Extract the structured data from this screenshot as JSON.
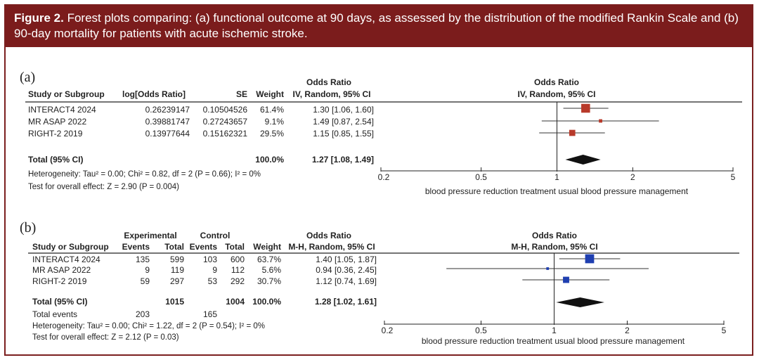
{
  "caption": {
    "figure_label": "Figure 2.",
    "text": " Forest plots comparing: (a) functional outcome at 90 days, as assessed by the distribution of the modified Rankin Scale and (b) 90-day mortality for patients with acute ischemic stroke."
  },
  "panel_a": {
    "label": "(a)",
    "headers": {
      "study": "Study or Subgroup",
      "log_or": "log[Odds Ratio]",
      "se": "SE",
      "weight": "Weight",
      "or_top": "Odds Ratio",
      "or_method": "IV, Random, 95% CI",
      "plot_top": "Odds Ratio",
      "plot_method": "IV, Random, 95% CI"
    },
    "rows": [
      {
        "study": "INTERACT4 2024",
        "log_or": "0.26239147",
        "se": "0.10504526",
        "weight": "61.4%",
        "ci_text": "1.30 [1.06, 1.60]"
      },
      {
        "study": "MR ASAP 2022",
        "log_or": "0.39881747",
        "se": "0.27243657",
        "weight": "9.1%",
        "ci_text": "1.49 [0.87, 2.54]"
      },
      {
        "study": "RIGHT-2 2019",
        "log_or": "0.13977644",
        "se": "0.15162321",
        "weight": "29.5%",
        "ci_text": "1.15 [0.85, 1.55]"
      }
    ],
    "total": {
      "label": "Total (95% CI)",
      "weight": "100.0%",
      "ci_text": "1.27 [1.08, 1.49]"
    },
    "heterogeneity": "Heterogeneity: Tau² = 0.00; Chi² = 0.82, df = 2 (P = 0.66); I² = 0%",
    "overall_effect": "Test for overall effect: Z = 2.90 (P = 0.004)",
    "axis_ticks": [
      "0.2",
      "0.5",
      "1",
      "2",
      "5"
    ],
    "axis_caption": "blood pressure reduction treatment  usual blood pressure management",
    "marker_color": "#b83a2a"
  },
  "panel_b": {
    "label": "(b)",
    "headers": {
      "experimental": "Experimental",
      "control": "Control",
      "study": "Study or Subgroup",
      "events_e": "Events",
      "total_e": "Total",
      "events_c": "Events",
      "total_c": "Total",
      "weight": "Weight",
      "or_top": "Odds Ratio",
      "or_method": "M-H, Random, 95% CI",
      "plot_top": "Odds Ratio",
      "plot_method": "M-H, Random, 95% CI"
    },
    "rows": [
      {
        "study": "INTERACT4 2024",
        "events_e": "135",
        "total_e": "599",
        "events_c": "103",
        "total_c": "600",
        "weight": "63.7%",
        "ci_text": "1.40 [1.05, 1.87]"
      },
      {
        "study": "MR ASAP 2022",
        "events_e": "9",
        "total_e": "119",
        "events_c": "9",
        "total_c": "112",
        "weight": "5.6%",
        "ci_text": "0.94 [0.36, 2.45]"
      },
      {
        "study": "RIGHT-2 2019",
        "events_e": "59",
        "total_e": "297",
        "events_c": "53",
        "total_c": "292",
        "weight": "30.7%",
        "ci_text": "1.12 [0.74, 1.69]"
      }
    ],
    "total": {
      "label": "Total (95% CI)",
      "total_e": "1015",
      "total_c": "1004",
      "weight": "100.0%",
      "ci_text": "1.28 [1.02, 1.61]"
    },
    "total_events": {
      "label": "Total events",
      "events_e": "203",
      "events_c": "165"
    },
    "heterogeneity": "Heterogeneity: Tau² = 0.00; Chi² = 1.22, df = 2 (P = 0.54); I² = 0%",
    "overall_effect": "Test for overall effect: Z = 2.12 (P = 0.03)",
    "axis_ticks": [
      "0.2",
      "0.5",
      "1",
      "2",
      "5"
    ],
    "axis_caption": "blood pressure reduction treatment  usual blood pressure management",
    "marker_color": "#1f3fb0"
  },
  "chart_data": [
    {
      "type": "forest",
      "scale": "log",
      "xlim": [
        0.2,
        5
      ],
      "null_value": 1,
      "points": [
        {
          "study": "INTERACT4 2024",
          "or": 1.3,
          "lo": 1.06,
          "hi": 1.6,
          "weight": 61.4
        },
        {
          "study": "MR ASAP 2022",
          "or": 1.49,
          "lo": 0.87,
          "hi": 2.54,
          "weight": 9.1
        },
        {
          "study": "RIGHT-2 2019",
          "or": 1.15,
          "lo": 0.85,
          "hi": 1.55,
          "weight": 29.5
        }
      ],
      "pooled": {
        "or": 1.27,
        "lo": 1.08,
        "hi": 1.49
      }
    },
    {
      "type": "forest",
      "scale": "log",
      "xlim": [
        0.2,
        5
      ],
      "null_value": 1,
      "points": [
        {
          "study": "INTERACT4 2024",
          "or": 1.4,
          "lo": 1.05,
          "hi": 1.87,
          "weight": 63.7
        },
        {
          "study": "MR ASAP 2022",
          "or": 0.94,
          "lo": 0.36,
          "hi": 2.45,
          "weight": 5.6
        },
        {
          "study": "RIGHT-2 2019",
          "or": 1.12,
          "lo": 0.74,
          "hi": 1.69,
          "weight": 30.7
        }
      ],
      "pooled": {
        "or": 1.28,
        "lo": 1.02,
        "hi": 1.61
      }
    }
  ]
}
